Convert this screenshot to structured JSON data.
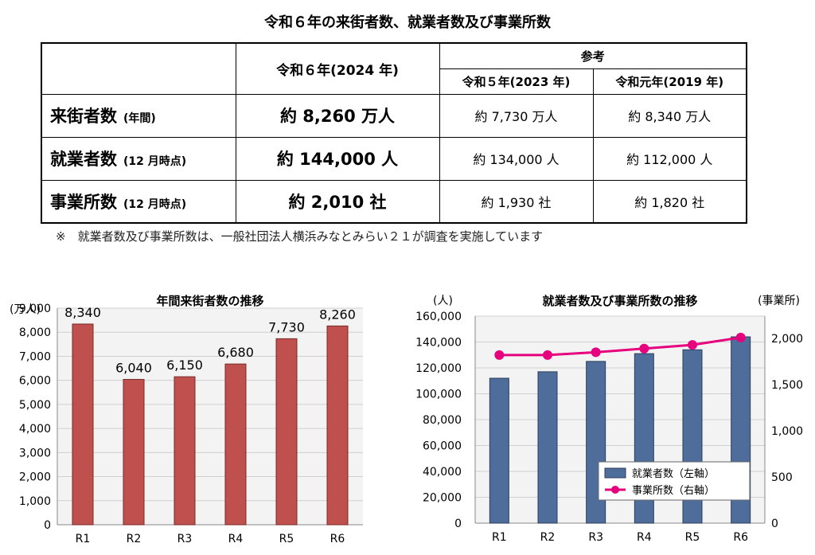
{
  "title": "令和６年の来街者数、就業者数及び事業所数",
  "table": {
    "header_main": "令和６年(2024 年)",
    "header_ref": "参考",
    "header_ref_years": [
      "令和５年(2023 年)",
      "令和元年(2019 年)"
    ],
    "rows": [
      {
        "label": "来街者数",
        "note": "(年間)",
        "main": "約 8,260 万人",
        "ref1": "約 7,730 万人",
        "ref2": "約 8,340 万人"
      },
      {
        "label": "就業者数",
        "note": "(12 月時点)",
        "main": "約 144,000 人",
        "ref1": "約 134,000 人",
        "ref2": "約 112,000 人"
      },
      {
        "label": "事業所数",
        "note": "(12 月時点)",
        "main": "約 2,010 社",
        "ref1": "約 1,930 社",
        "ref2": "約 1,820 社"
      }
    ]
  },
  "footnote": "※　就業者数及び事業所数は、一般社団法人横浜みなとみらい２１が調査を実施しています",
  "chart_data": [
    {
      "type": "bar",
      "title": "年間来街者数の推移",
      "ylabel": "(万人)",
      "categories": [
        "R1",
        "R2",
        "R3",
        "R4",
        "R5",
        "R6"
      ],
      "values": [
        8340,
        6040,
        6150,
        6680,
        7730,
        8260
      ],
      "value_labels": [
        "8,340",
        "6,040",
        "6,150",
        "6,680",
        "7,730",
        "8,260"
      ],
      "ylim": [
        0,
        9000
      ],
      "yticks": [
        "0",
        "1,000",
        "2,000",
        "3,000",
        "4,000",
        "5,000",
        "6,000",
        "7,000",
        "8,000",
        "9,000"
      ],
      "grid": true,
      "color": "#c0504d"
    },
    {
      "type": "bar",
      "title": "就業者数及び事業所数の推移",
      "ylabel_left": "(人)",
      "ylabel_right": "(事業所)",
      "categories": [
        "R1",
        "R2",
        "R3",
        "R4",
        "R5",
        "R6"
      ],
      "ylim_left": [
        0,
        160000
      ],
      "ylim_right": [
        0,
        2000
      ],
      "yticks_left": [
        "0",
        "20,000",
        "40,000",
        "60,000",
        "80,000",
        "100,000",
        "120,000",
        "140,000",
        "160,000"
      ],
      "yticks_right": [
        "0",
        "500",
        "1,000",
        "1,500",
        "2,000"
      ],
      "series": [
        {
          "name": "就業者数（左軸）",
          "type": "bar",
          "axis": "left",
          "values": [
            112000,
            117000,
            125000,
            131000,
            134000,
            144000
          ],
          "color": "#4f6d9a"
        },
        {
          "name": "事業所数（右軸）",
          "type": "line",
          "axis": "right",
          "values": [
            1820,
            1820,
            1850,
            1890,
            1930,
            2010
          ],
          "color": "#e6007e"
        }
      ],
      "legend_position": "bottom-right",
      "grid": true
    }
  ]
}
